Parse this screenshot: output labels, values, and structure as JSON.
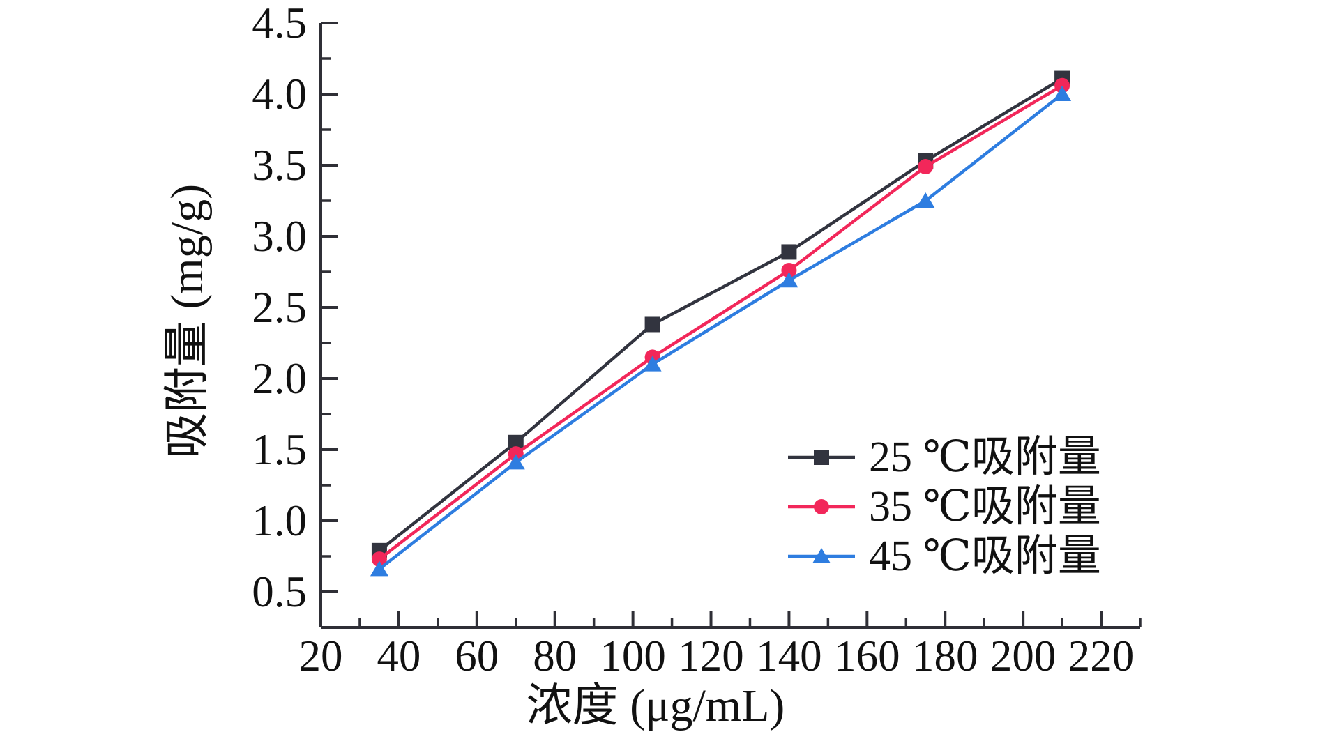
{
  "chart_data": {
    "type": "line",
    "title": "",
    "xlabel": "浓度 (μg/mL)",
    "ylabel": "吸附量 (mg/g)",
    "xlim": [
      20,
      230
    ],
    "ylim": [
      0.25,
      4.5
    ],
    "grid": false,
    "legend_position": "inside-lower-right",
    "axis_color": "#2f2f36",
    "text_color": "#111111",
    "xticks_major": [
      20,
      40,
      60,
      80,
      100,
      120,
      140,
      160,
      180,
      200,
      220
    ],
    "xtick_labels": [
      "20",
      "40",
      "60",
      "80",
      "100",
      "120",
      "140",
      "160",
      "180",
      "200",
      "220"
    ],
    "xticks_minor": [
      30,
      50,
      70,
      90,
      110,
      130,
      150,
      170,
      190,
      210,
      230
    ],
    "yticks_major": [
      0.5,
      1.0,
      1.5,
      2.0,
      2.5,
      3.0,
      3.5,
      4.0,
      4.5
    ],
    "ytick_labels": [
      "0.5",
      "1.0",
      "1.5",
      "2.0",
      "2.5",
      "3.0",
      "3.5",
      "4.0",
      "4.5"
    ],
    "yticks_minor": [
      0.75,
      1.25,
      1.75,
      2.25,
      2.75,
      3.25,
      3.75,
      4.25
    ],
    "x": [
      35,
      70,
      105,
      140,
      175,
      210
    ],
    "series": [
      {
        "name": "25 ℃吸附量",
        "marker": "square-marker",
        "color": "#32343f",
        "values": [
          0.79,
          1.55,
          2.38,
          2.89,
          3.53,
          4.11
        ]
      },
      {
        "name": "35 ℃吸附量",
        "marker": "circle-marker",
        "color": "#f2275a",
        "values": [
          0.73,
          1.47,
          2.15,
          2.76,
          3.49,
          4.06
        ]
      },
      {
        "name": "45 ℃吸附量",
        "marker": "triangle-marker",
        "color": "#2e7de0",
        "values": [
          0.66,
          1.41,
          2.1,
          2.69,
          3.25,
          4.0
        ]
      }
    ]
  }
}
